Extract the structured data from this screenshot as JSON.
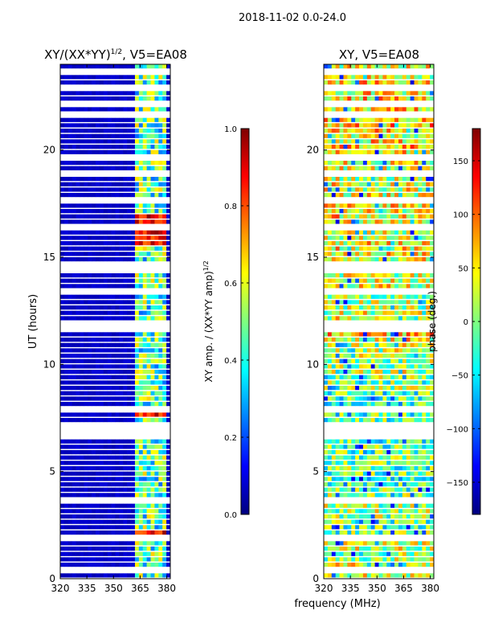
{
  "figure_title": "2018-11-02 0.0-24.0",
  "shared_xlabel": "frequency (MHz)",
  "colors": {
    "white_row": "#ffffff",
    "cmap_stops": [
      "#00007f",
      "#0000ff",
      "#007fff",
      "#00ffff",
      "#7fff7f",
      "#ffff00",
      "#ff7f00",
      "#ff0000",
      "#7f0000"
    ]
  },
  "chart_data": [
    {
      "type": "heatmap",
      "id": "amp",
      "title_text": "XY/(XX*YY)",
      "title_sup": "1/2",
      "title_suffix": ", V5=EA08",
      "xlabel": "",
      "ylabel": "UT (hours)",
      "xlim": [
        320,
        382
      ],
      "ylim": [
        0,
        24
      ],
      "xticks": [
        320,
        335,
        350,
        365,
        380
      ],
      "yticks": [
        0,
        5,
        10,
        15,
        20
      ],
      "colorbar": {
        "label_text": "XY amp. / (XX*YY amp)",
        "label_sup": "1/2",
        "range": [
          0.0,
          1.0
        ],
        "ticks": [
          "0.0",
          "0.2",
          "0.4",
          "0.6",
          "0.8",
          "1.0"
        ],
        "tick_values": [
          0.0,
          0.2,
          0.4,
          0.6,
          0.8,
          1.0
        ]
      },
      "description_values": {
        "background_level": 0.05,
        "active_band_MHz": [
          363,
          380
        ],
        "active_band_level": 0.45,
        "high_bursts_hours": [
          [
            1.8,
            2.2
          ],
          [
            15.5,
            17.0
          ],
          [
            7.5,
            8.0
          ]
        ]
      }
    },
    {
      "type": "heatmap",
      "id": "phase",
      "title_text": "XY, V5=EA08",
      "xlabel": "frequency (MHz)",
      "ylabel": "",
      "xlim": [
        320,
        382
      ],
      "ylim": [
        0,
        24
      ],
      "xticks": [
        320,
        335,
        350,
        365,
        380
      ],
      "yticks": [
        0,
        5,
        10,
        15,
        20
      ],
      "colorbar": {
        "label_text": "phase (deg.)",
        "range": [
          -180,
          180
        ],
        "ticks": [
          "−150",
          "−100",
          "−50",
          "0",
          "50",
          "100",
          "150"
        ],
        "tick_values": [
          -150,
          -100,
          -50,
          0,
          50,
          100,
          150
        ]
      }
    }
  ]
}
